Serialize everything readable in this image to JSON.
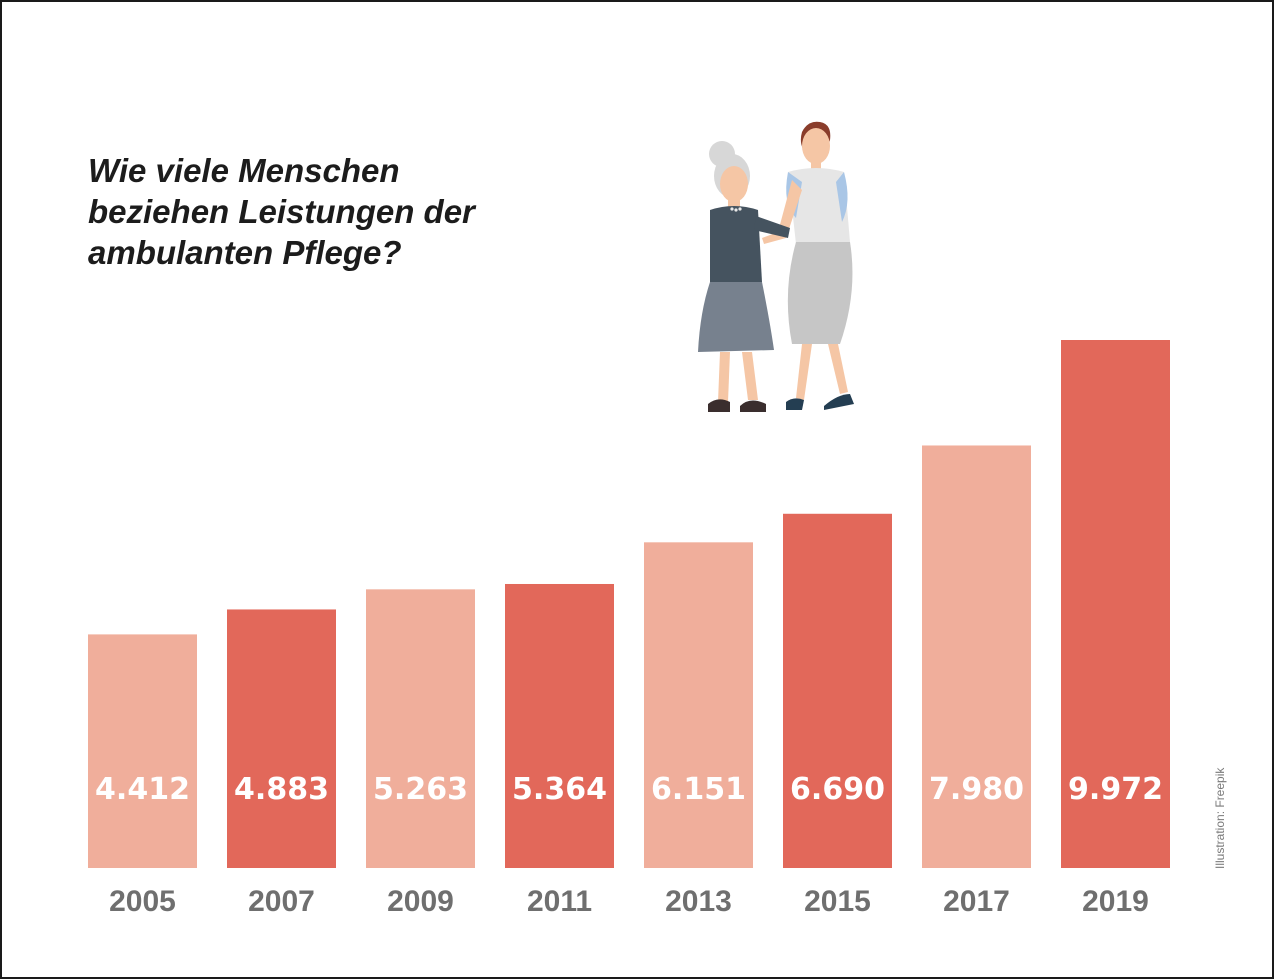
{
  "title_lines": [
    "Wie viele Menschen",
    "beziehen Leistungen der",
    "ambulanten Pflege?"
  ],
  "credit": "Illustration: Freepik",
  "colors": {
    "bar_light": "#f0ae9b",
    "bar_dark": "#e2685a",
    "value_text": "#ffffff",
    "year_text": "#6f6f6f",
    "title_text": "#1c1c1c"
  },
  "illustration": {
    "icon": "elderly-care-icon"
  },
  "chart_data": {
    "type": "bar",
    "categories": [
      "2005",
      "2007",
      "2009",
      "2011",
      "2013",
      "2015",
      "2017",
      "2019"
    ],
    "values": [
      4412,
      4883,
      5263,
      5364,
      6151,
      6690,
      7980,
      9972
    ],
    "value_labels": [
      "4.412",
      "4.883",
      "5.263",
      "5.364",
      "6.151",
      "6.690",
      "7.980",
      "9.972"
    ],
    "bar_colors": [
      "light",
      "dark",
      "light",
      "dark",
      "light",
      "dark",
      "light",
      "dark"
    ],
    "title": "Wie viele Menschen beziehen Leistungen der ambulanten Pflege?",
    "xlabel": "",
    "ylabel": "",
    "ylim": [
      0,
      9972
    ],
    "grid": false,
    "legend": "none"
  }
}
